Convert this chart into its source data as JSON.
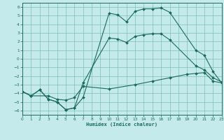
{
  "xlabel": "Humidex (Indice chaleur)",
  "xlim": [
    0,
    23
  ],
  "ylim": [
    -6.5,
    6.5
  ],
  "xticks": [
    0,
    1,
    2,
    3,
    4,
    5,
    6,
    7,
    8,
    9,
    10,
    11,
    12,
    13,
    14,
    15,
    16,
    17,
    18,
    19,
    20,
    21,
    22,
    23
  ],
  "yticks": [
    -6,
    -5,
    -4,
    -3,
    -2,
    -1,
    0,
    1,
    2,
    3,
    4,
    5,
    6
  ],
  "background_color": "#c5eaeb",
  "grid_color": "#7dbfb8",
  "line_color": "#1a6b5a",
  "line1_x": [
    0,
    1,
    2,
    3,
    4,
    5,
    6,
    7,
    10,
    11,
    12,
    13,
    14,
    15,
    16,
    17,
    20,
    21,
    22,
    23
  ],
  "line1_y": [
    -3.8,
    -4.3,
    -3.6,
    -4.7,
    -5.0,
    -5.9,
    -5.7,
    -4.5,
    5.3,
    5.1,
    4.3,
    5.5,
    5.8,
    5.8,
    5.9,
    5.4,
    1.0,
    0.4,
    -1.5,
    -2.8
  ],
  "line2_x": [
    0,
    1,
    2,
    3,
    4,
    5,
    6,
    7,
    10,
    11,
    12,
    13,
    14,
    15,
    16,
    17,
    20,
    21,
    22,
    23
  ],
  "line2_y": [
    -3.8,
    -4.3,
    -3.6,
    -4.7,
    -5.0,
    -5.9,
    -5.7,
    -2.8,
    2.4,
    2.3,
    1.9,
    2.6,
    2.8,
    2.9,
    2.9,
    2.2,
    -0.8,
    -1.3,
    -2.2,
    -2.7
  ],
  "line3_x": [
    0,
    1,
    3,
    4,
    5,
    6,
    7,
    10,
    13,
    15,
    17,
    19,
    20,
    21,
    22,
    23
  ],
  "line3_y": [
    -3.8,
    -4.3,
    -4.3,
    -4.7,
    -4.8,
    -4.5,
    -3.2,
    -3.5,
    -3.0,
    -2.6,
    -2.2,
    -1.8,
    -1.7,
    -1.6,
    -2.6,
    -2.8
  ]
}
